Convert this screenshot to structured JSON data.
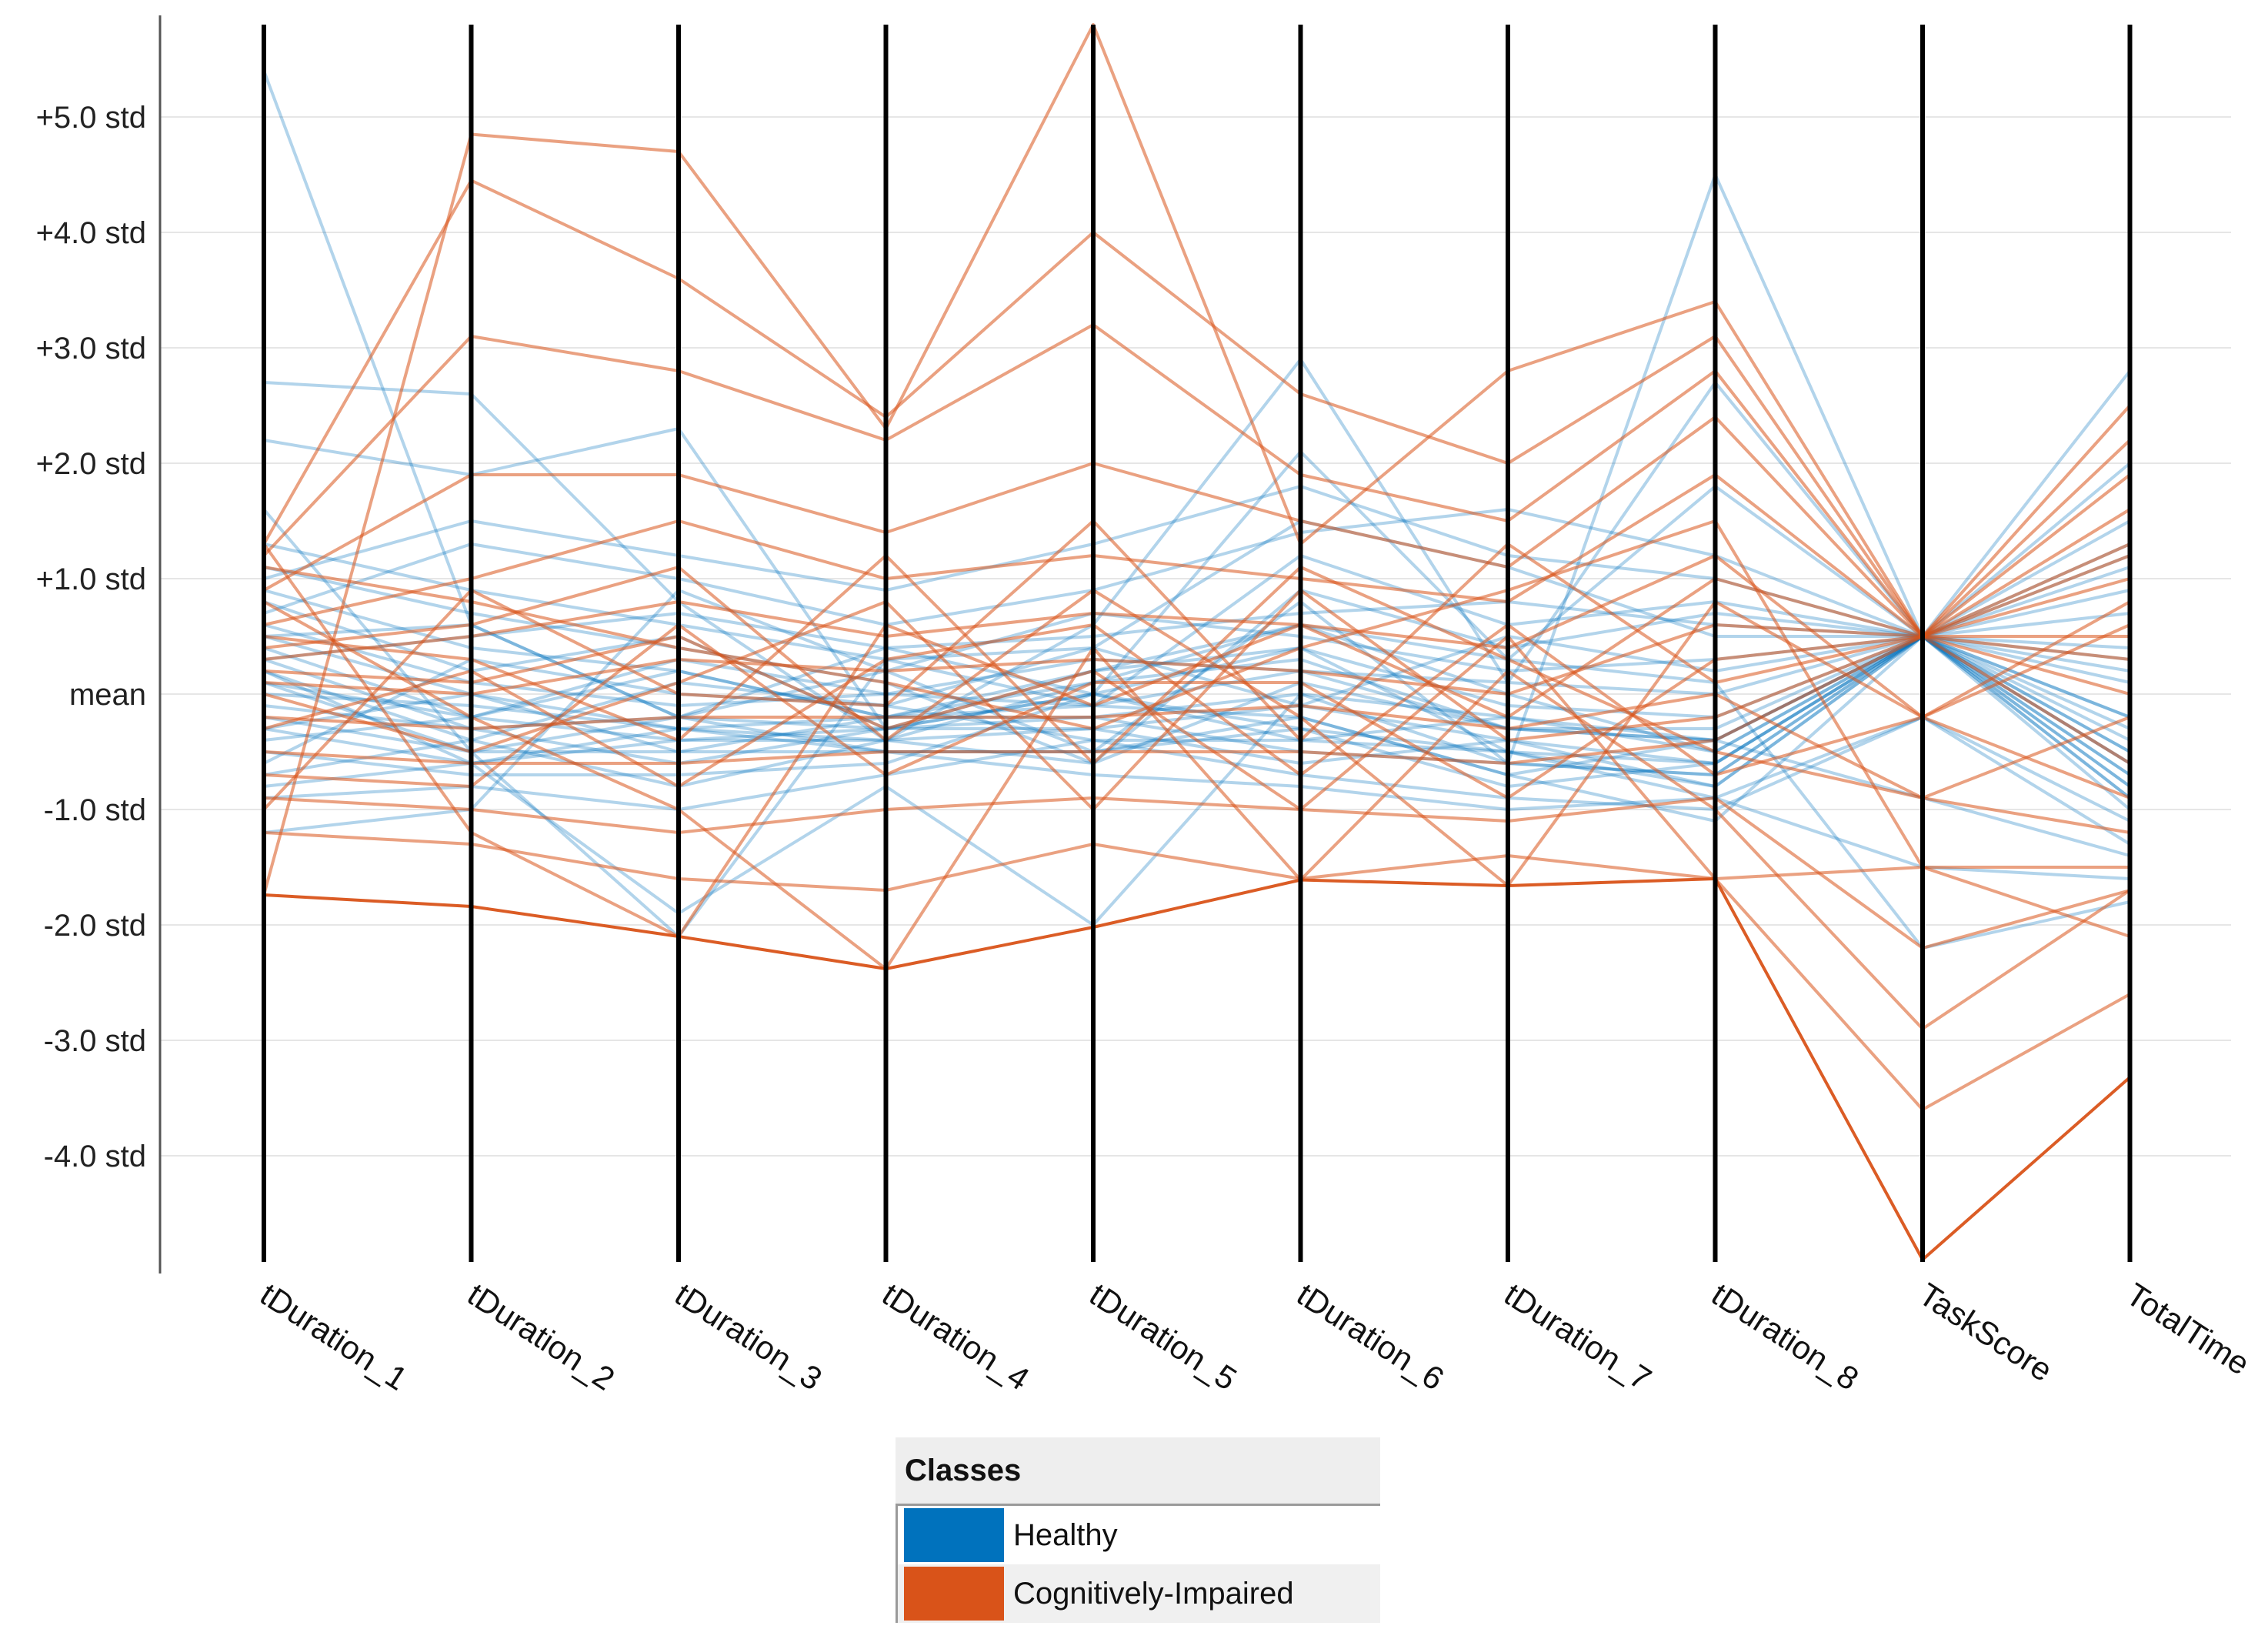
{
  "chart_data": {
    "type": "parallel-coordinates",
    "axes": [
      "tDuration_1",
      "tDuration_2",
      "tDuration_3",
      "tDuration_4",
      "tDuration_5",
      "tDuration_6",
      "tDuration_7",
      "tDuration_8",
      "TaskScore",
      "TotalTime"
    ],
    "yticks": [
      {
        "value": 5,
        "label": "+5.0 std"
      },
      {
        "value": 4,
        "label": "+4.0 std"
      },
      {
        "value": 3,
        "label": "+3.0 std"
      },
      {
        "value": 2,
        "label": "+2.0 std"
      },
      {
        "value": 1,
        "label": "+1.0 std"
      },
      {
        "value": 0,
        "label": "mean"
      },
      {
        "value": -1,
        "label": "-1.0 std"
      },
      {
        "value": -2,
        "label": "-2.0 std"
      },
      {
        "value": -3,
        "label": "-3.0 std"
      },
      {
        "value": -4,
        "label": "-4.0 std"
      }
    ],
    "ylim": [
      -4.9,
      5.85
    ],
    "grid": true,
    "legend": {
      "title": "Classes",
      "position": "bottom-center",
      "entries": [
        {
          "name": "Healthy",
          "color": "#0072BD"
        },
        {
          "name": "Cognitively-Impaired",
          "color": "#D95319"
        }
      ]
    },
    "series": [
      {
        "name": "Healthy",
        "color": "#0072BD",
        "lines": [
          [
            5.4,
            0.6,
            -0.2,
            0.2,
            -0.5,
            0.8,
            -0.6,
            4.5,
            0.5,
            1.2
          ],
          [
            2.7,
            2.6,
            0.8,
            -0.4,
            0.6,
            2.9,
            0.1,
            2.7,
            0.5,
            2.8
          ],
          [
            2.2,
            1.9,
            2.3,
            -0.3,
            0.0,
            2.1,
            0.3,
            1.8,
            0.5,
            2.0
          ],
          [
            1.6,
            -0.5,
            -2.1,
            0.3,
            0.4,
            1.5,
            1.1,
            0.5,
            0.5,
            1.1
          ],
          [
            1.3,
            0.9,
            0.6,
            0.3,
            -0.1,
            1.2,
            0.6,
            0.8,
            0.5,
            0.9
          ],
          [
            1.1,
            0.7,
            0.4,
            0.1,
            -0.6,
            0.9,
            0.4,
            0.7,
            0.5,
            -0.2
          ],
          [
            0.9,
            0.4,
            0.2,
            -0.2,
            0.1,
            0.6,
            0.0,
            -0.5,
            0.5,
            -0.6
          ],
          [
            0.8,
            0.2,
            0.5,
            -0.3,
            0.2,
            0.4,
            -0.5,
            -0.6,
            0.5,
            -0.7
          ],
          [
            0.6,
            0.1,
            -0.1,
            0.0,
            0.3,
            0.2,
            -0.3,
            -0.4,
            0.5,
            -0.5
          ],
          [
            0.5,
            0.0,
            -0.3,
            -0.2,
            -0.2,
            0.0,
            -0.6,
            -0.7,
            0.5,
            -0.8
          ],
          [
            0.4,
            -0.2,
            -0.4,
            -0.4,
            -0.3,
            -0.1,
            -0.4,
            -0.6,
            0.5,
            -0.4
          ],
          [
            0.3,
            -0.3,
            -0.2,
            -0.3,
            0.0,
            -0.3,
            -0.5,
            -0.8,
            0.5,
            -0.9
          ],
          [
            0.2,
            -0.4,
            0.1,
            -0.1,
            -0.4,
            -0.4,
            -0.2,
            -0.5,
            0.5,
            -0.3
          ],
          [
            0.1,
            -0.5,
            -0.5,
            -0.2,
            -0.1,
            -0.2,
            -0.7,
            -0.4,
            0.5,
            -0.6
          ],
          [
            0.0,
            -0.1,
            -0.3,
            -0.4,
            0.1,
            0.3,
            -0.3,
            -0.3,
            0.5,
            -0.2
          ],
          [
            -0.1,
            -0.3,
            -0.6,
            -0.3,
            -0.2,
            -0.5,
            -0.6,
            -0.7,
            0.5,
            -0.7
          ],
          [
            -0.2,
            -0.5,
            -0.2,
            -0.5,
            -0.5,
            -0.3,
            -0.8,
            -0.6,
            0.5,
            -1.0
          ],
          [
            -0.3,
            -0.6,
            -0.4,
            -0.3,
            -0.3,
            -0.6,
            -0.4,
            -0.8,
            0.5,
            -0.8
          ],
          [
            -0.5,
            -0.7,
            -0.7,
            -0.6,
            0.0,
            -0.4,
            -0.5,
            -0.9,
            -0.2,
            -1.1
          ],
          [
            -0.7,
            -0.4,
            -0.8,
            -0.4,
            -0.6,
            0.1,
            -0.3,
            -0.4,
            0.5,
            -0.5
          ],
          [
            -0.9,
            -0.8,
            -1.0,
            -0.7,
            -0.4,
            -0.7,
            -0.9,
            -1.0,
            -0.2,
            -1.3
          ],
          [
            -1.2,
            -1.0,
            0.9,
            0.2,
            0.7,
            0.5,
            0.2,
            0.3,
            0.5,
            0.4
          ],
          [
            0.7,
            1.3,
            1.0,
            0.6,
            0.9,
            1.4,
            1.6,
            1.2,
            0.5,
            1.5
          ],
          [
            1.0,
            1.5,
            1.2,
            0.9,
            1.3,
            1.8,
            1.2,
            1.0,
            0.5,
            1.3
          ],
          [
            0.3,
            0.5,
            0.7,
            0.4,
            0.5,
            0.7,
            0.8,
            0.6,
            0.5,
            0.7
          ],
          [
            -0.4,
            -0.2,
            0.3,
            0.0,
            -0.1,
            0.2,
            0.1,
            0.0,
            0.5,
            0.2
          ],
          [
            0.2,
            -0.6,
            -1.9,
            -0.8,
            -2.0,
            0.0,
            -0.2,
            -0.4,
            -0.9,
            -1.4
          ],
          [
            -0.6,
            0.3,
            0.0,
            -0.1,
            0.4,
            -0.1,
            0.5,
            0.2,
            0.5,
            0.1
          ],
          [
            0.5,
            0.6,
            -0.2,
            0.4,
            0.0,
            0.4,
            -0.1,
            -0.2,
            0.5,
            0.3
          ],
          [
            -0.3,
            0.0,
            -0.5,
            -0.5,
            -0.7,
            -0.8,
            -1.0,
            -0.9,
            -1.5,
            -1.6
          ],
          [
            0.1,
            -0.2,
            0.2,
            -0.2,
            0.2,
            0.6,
            0.3,
            0.1,
            -2.2,
            -1.8
          ],
          [
            -0.8,
            -0.6,
            -0.3,
            -0.5,
            -0.5,
            -0.2,
            -0.7,
            -1.1,
            0.5,
            -0.9
          ]
        ]
      },
      {
        "name": "Cognitively-Impaired",
        "color": "#D95319",
        "lines": [
          [
            -1.74,
            -1.84,
            -2.1,
            -2.38,
            -2.02,
            -1.61,
            -1.66,
            -1.6,
            -4.9,
            -3.32
          ],
          [
            -1.74,
            4.85,
            4.7,
            2.3,
            5.8,
            1.3,
            2.8,
            3.4,
            0.5,
            2.5
          ],
          [
            1.3,
            4.45,
            3.6,
            2.4,
            4.0,
            2.6,
            2.0,
            3.1,
            0.5,
            1.9
          ],
          [
            1.2,
            3.1,
            2.8,
            2.2,
            3.2,
            1.9,
            1.5,
            2.8,
            0.5,
            1.6
          ],
          [
            0.9,
            1.9,
            1.9,
            1.4,
            2.0,
            1.5,
            1.1,
            2.4,
            0.5,
            1.3
          ],
          [
            0.6,
            1.0,
            1.5,
            1.0,
            1.2,
            1.0,
            0.8,
            1.9,
            0.5,
            1.0
          ],
          [
            0.3,
            0.5,
            0.8,
            0.5,
            0.7,
            0.6,
            0.4,
            1.2,
            -0.2,
            0.6
          ],
          [
            0.1,
            0.0,
            0.3,
            0.2,
            0.3,
            0.2,
            0.0,
            0.6,
            0.5,
            0.3
          ],
          [
            -0.2,
            -0.3,
            -0.2,
            -0.2,
            -0.2,
            -0.1,
            -0.3,
            0.0,
            -0.9,
            -0.2
          ],
          [
            -0.5,
            -0.6,
            -0.6,
            -0.5,
            -0.5,
            -0.5,
            -0.6,
            -0.4,
            0.5,
            -0.6
          ],
          [
            -0.9,
            -1.0,
            -1.2,
            -1.0,
            -0.9,
            -1.0,
            -1.1,
            -0.9,
            -2.2,
            -1.7
          ],
          [
            -1.2,
            -1.3,
            -1.6,
            -1.7,
            -1.3,
            -1.6,
            -1.4,
            -1.6,
            -3.6,
            -2.6
          ],
          [
            1.1,
            0.8,
            0.4,
            0.1,
            -0.3,
            0.4,
            0.9,
            1.5,
            -1.5,
            -2.1
          ],
          [
            0.8,
            -0.2,
            -1.0,
            -2.38,
            0.4,
            -1.61,
            0.2,
            -1.0,
            -2.9,
            -1.7
          ],
          [
            0.4,
            0.6,
            1.1,
            -0.4,
            0.9,
            -0.2,
            -1.66,
            0.8,
            -0.2,
            0.8
          ],
          [
            0.0,
            -0.5,
            0.1,
            0.8,
            -1.0,
            0.9,
            -0.4,
            -0.2,
            0.5,
            1.2
          ],
          [
            -0.3,
            0.2,
            -0.8,
            0.3,
            0.6,
            -0.7,
            0.6,
            -0.7,
            -0.2,
            -0.9
          ],
          [
            -0.7,
            -0.8,
            0.6,
            -0.7,
            0.1,
            0.1,
            -0.9,
            0.3,
            0.5,
            0.0
          ],
          [
            0.5,
            0.3,
            -0.4,
            1.2,
            -0.6,
            1.1,
            0.3,
            -0.5,
            -0.9,
            -1.2
          ],
          [
            -1.0,
            0.9,
            0.0,
            -0.1,
            1.5,
            -0.4,
            1.3,
            0.1,
            0.5,
            0.5
          ],
          [
            1.3,
            -1.2,
            -2.1,
            0.6,
            -0.1,
            0.6,
            -0.2,
            1.0,
            0.5,
            2.2
          ],
          [
            0.2,
            0.1,
            0.5,
            -0.3,
            0.2,
            -1.0,
            0.5,
            -1.6,
            -1.5,
            -1.5
          ]
        ]
      }
    ]
  }
}
